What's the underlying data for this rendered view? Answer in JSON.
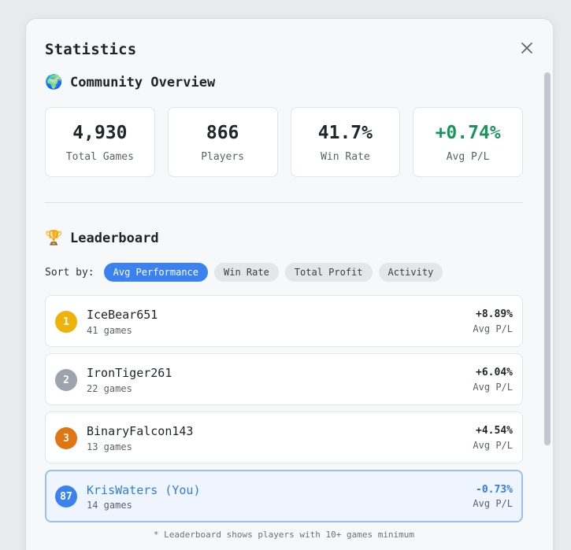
{
  "modal": {
    "title": "Statistics",
    "close_icon": "close-icon"
  },
  "overview": {
    "emoji": "🌍",
    "title": "Community Overview",
    "stats": [
      {
        "value": "4,930",
        "label": "Total Games"
      },
      {
        "value": "866",
        "label": "Players"
      },
      {
        "value": "41.7%",
        "label": "Win Rate"
      },
      {
        "value": "+0.74%",
        "label": "Avg P/L",
        "color": "#17955a"
      }
    ]
  },
  "leaderboard": {
    "emoji": "🏆",
    "title": "Leaderboard",
    "sort_label": "Sort by:",
    "sort_options": [
      {
        "label": "Avg Performance",
        "active": true
      },
      {
        "label": "Win Rate",
        "active": false
      },
      {
        "label": "Total Profit",
        "active": false
      },
      {
        "label": "Activity",
        "active": false
      }
    ],
    "rows": [
      {
        "rank": "1",
        "name": "IceBear651",
        "games": "41 games",
        "value": "+8.89%",
        "value_label": "Avg P/L",
        "badge_color": "#efb20b"
      },
      {
        "rank": "2",
        "name": "IronTiger261",
        "games": "22 games",
        "value": "+6.04%",
        "value_label": "Avg P/L",
        "badge_color": "#9ca3ad"
      },
      {
        "rank": "3",
        "name": "BinaryFalcon143",
        "games": "13 games",
        "value": "+4.54%",
        "value_label": "Avg P/L",
        "badge_color": "#e07512"
      },
      {
        "rank": "87",
        "name": "KrisWaters (You)",
        "games": "14 games",
        "value": "-0.73%",
        "value_label": "Avg P/L",
        "badge_color": "#3b82f0",
        "highlight": true
      }
    ],
    "footnote": "* Leaderboard shows players with 10+ games minimum"
  },
  "colors": {
    "accent": "#3b82f0",
    "positive": "#17955a",
    "you_highlight": "#2f7de0"
  }
}
